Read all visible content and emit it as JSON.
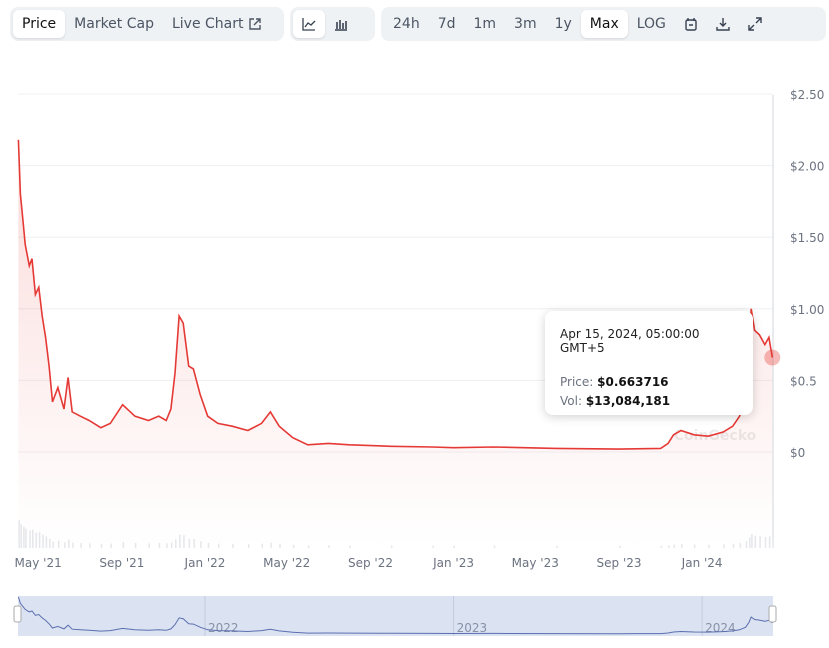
{
  "toolbar": {
    "tabs": [
      {
        "label": "Price",
        "active": true
      },
      {
        "label": "Market Cap"
      },
      {
        "label": "Live Chart"
      }
    ],
    "chart_types": [
      {
        "icon": "line-chart-icon",
        "active": true
      },
      {
        "icon": "candlestick-chart-icon"
      }
    ],
    "ranges": [
      {
        "label": "24h"
      },
      {
        "label": "7d"
      },
      {
        "label": "1m"
      },
      {
        "label": "3m"
      },
      {
        "label": "1y"
      },
      {
        "label": "Max",
        "active": true
      },
      {
        "label": "LOG"
      }
    ],
    "icons": [
      "calendar-icon",
      "download-icon",
      "expand-icon"
    ]
  },
  "watermark": "CoinGecko",
  "tooltip": {
    "date": "Apr 15, 2024, 05:00:00 GMT+5",
    "price_label": "Price:",
    "price": "$0.663716",
    "vol_label": "Vol:",
    "vol": "$13,084,181"
  },
  "colors": {
    "line": "#e53935",
    "navigator": "#5b6fb0",
    "navigator_bg": "#dbe2f1"
  },
  "chart_data": {
    "type": "line",
    "ylim": [
      0,
      2.5
    ],
    "y_ticks": [
      "$0",
      "$0.5",
      "$1.00",
      "$1.50",
      "$2.00",
      "$2.50"
    ],
    "y_tick_values": [
      0,
      0.5,
      1,
      1.5,
      2,
      2.5
    ],
    "x_ticks": [
      "May '21",
      "Sep '21",
      "Jan '22",
      "May '22",
      "Sep '22",
      "Jan '23",
      "May '23",
      "Sep '23",
      "Jan '24"
    ],
    "x_tick_dates": [
      "2021-05-01",
      "2021-09-01",
      "2022-01-01",
      "2022-05-01",
      "2022-09-01",
      "2023-01-01",
      "2023-05-01",
      "2023-09-01",
      "2024-01-01"
    ],
    "navigator_labels": [
      "2022",
      "2023",
      "2024"
    ],
    "navigator_dates": [
      "2022-01-01",
      "2023-01-01",
      "2024-01-01"
    ],
    "series": [
      {
        "dates": [
          "2021-04-02",
          "2021-04-05",
          "2021-04-09",
          "2021-04-12",
          "2021-04-18",
          "2021-04-22",
          "2021-04-27",
          "2021-05-02",
          "2021-05-07",
          "2021-05-12",
          "2021-05-17",
          "2021-05-22",
          "2021-05-30",
          "2021-06-08",
          "2021-06-14",
          "2021-06-20",
          "2021-07-02",
          "2021-07-15",
          "2021-08-01",
          "2021-08-15",
          "2021-09-02",
          "2021-09-20",
          "2021-10-10",
          "2021-10-25",
          "2021-11-05",
          "2021-11-12",
          "2021-11-18",
          "2021-11-24",
          "2021-11-30",
          "2021-12-08",
          "2021-12-15",
          "2021-12-25",
          "2022-01-05",
          "2022-01-20",
          "2022-02-10",
          "2022-03-05",
          "2022-03-25",
          "2022-04-07",
          "2022-04-20",
          "2022-05-10",
          "2022-06-01",
          "2022-07-01",
          "2022-08-01",
          "2022-10-01",
          "2022-12-01",
          "2023-01-01",
          "2023-03-01",
          "2023-06-01",
          "2023-09-01",
          "2023-11-01",
          "2023-11-12",
          "2023-11-20",
          "2023-12-01",
          "2023-12-20",
          "2024-01-10",
          "2024-02-01",
          "2024-02-15",
          "2024-02-25",
          "2024-03-05",
          "2024-03-10",
          "2024-03-13",
          "2024-03-18",
          "2024-03-25",
          "2024-04-02",
          "2024-04-08",
          "2024-04-13"
        ],
        "values": [
          2.18,
          1.8,
          1.6,
          1.45,
          1.3,
          1.35,
          1.1,
          1.15,
          0.95,
          0.8,
          0.6,
          0.35,
          0.45,
          0.3,
          0.52,
          0.28,
          0.25,
          0.22,
          0.17,
          0.2,
          0.33,
          0.25,
          0.22,
          0.25,
          0.22,
          0.3,
          0.55,
          0.95,
          0.9,
          0.6,
          0.58,
          0.4,
          0.25,
          0.2,
          0.18,
          0.15,
          0.2,
          0.28,
          0.18,
          0.1,
          0.05,
          0.06,
          0.05,
          0.04,
          0.035,
          0.03,
          0.035,
          0.025,
          0.02,
          0.025,
          0.06,
          0.12,
          0.15,
          0.12,
          0.11,
          0.14,
          0.18,
          0.25,
          0.4,
          0.7,
          1.0,
          0.85,
          0.82,
          0.75,
          0.8,
          0.66
        ]
      }
    ]
  }
}
